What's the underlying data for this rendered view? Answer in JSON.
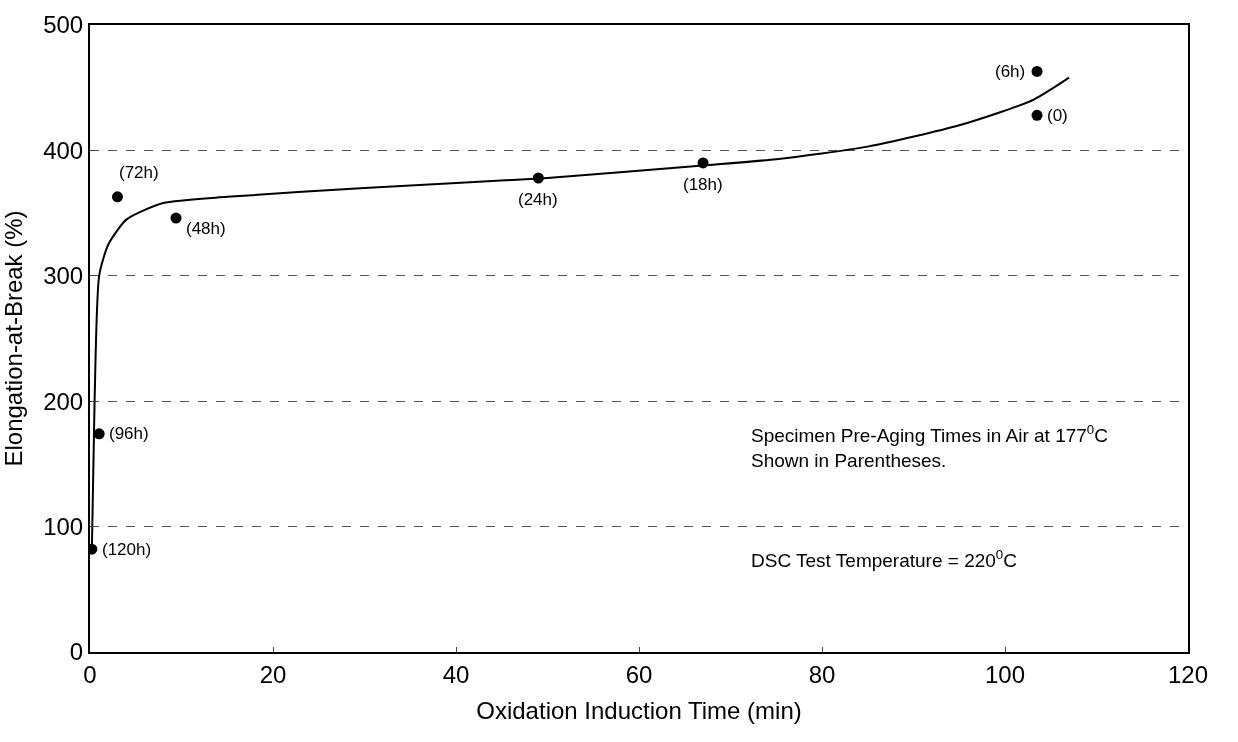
{
  "chart_data": {
    "type": "scatter",
    "xlabel": "Oxidation Induction Time (min)",
    "ylabel": "Elongation-at-Break (%)",
    "xlim": [
      0,
      120
    ],
    "xticks": [
      0,
      20,
      40,
      60,
      80,
      100,
      120
    ],
    "ylim": [
      0,
      500
    ],
    "yticks": [
      0,
      100,
      200,
      300,
      400,
      500
    ],
    "grid": "y",
    "marker": "circle",
    "series": [
      {
        "color": "#000000",
        "x": [
          0.2,
          1,
          3,
          9.4,
          49,
          67,
          103.5,
          103.5
        ],
        "values": [
          82,
          174,
          363,
          346,
          378,
          390,
          463,
          428
        ]
      },
      {
        "type": "line",
        "color": "#000000",
        "marker": "none",
        "line_style": "solid",
        "x": [
          0.2,
          0.5,
          1,
          2,
          4,
          8,
          15,
          30,
          50,
          67,
          75,
          85,
          95,
          103,
          107
        ],
        "values": [
          80,
          200,
          300,
          325,
          345,
          358,
          363,
          370,
          378,
          388,
          393,
          403,
          420,
          440,
          458
        ]
      }
    ],
    "annotations": [
      {
        "text": "(120h)",
        "x": 0.2,
        "y": 82
      },
      {
        "text": "(96h)",
        "x": 1,
        "y": 174
      },
      {
        "text": "(72h)",
        "x": 3,
        "y": 363
      },
      {
        "text": "(48h)",
        "x": 9.4,
        "y": 346
      },
      {
        "text": "(24h)",
        "x": 49,
        "y": 378
      },
      {
        "text": "(18h)",
        "x": 67,
        "y": 390
      },
      {
        "text": "(6h)",
        "x": 103.5,
        "y": 463
      },
      {
        "text": "(0)",
        "x": 103.5,
        "y": 428
      },
      "Specimen Pre-Aging Times in Air at 177$^{0}$C\nShown in Parentheses.",
      "DSC Test Temperature = 220$^{0}$C"
    ]
  }
}
